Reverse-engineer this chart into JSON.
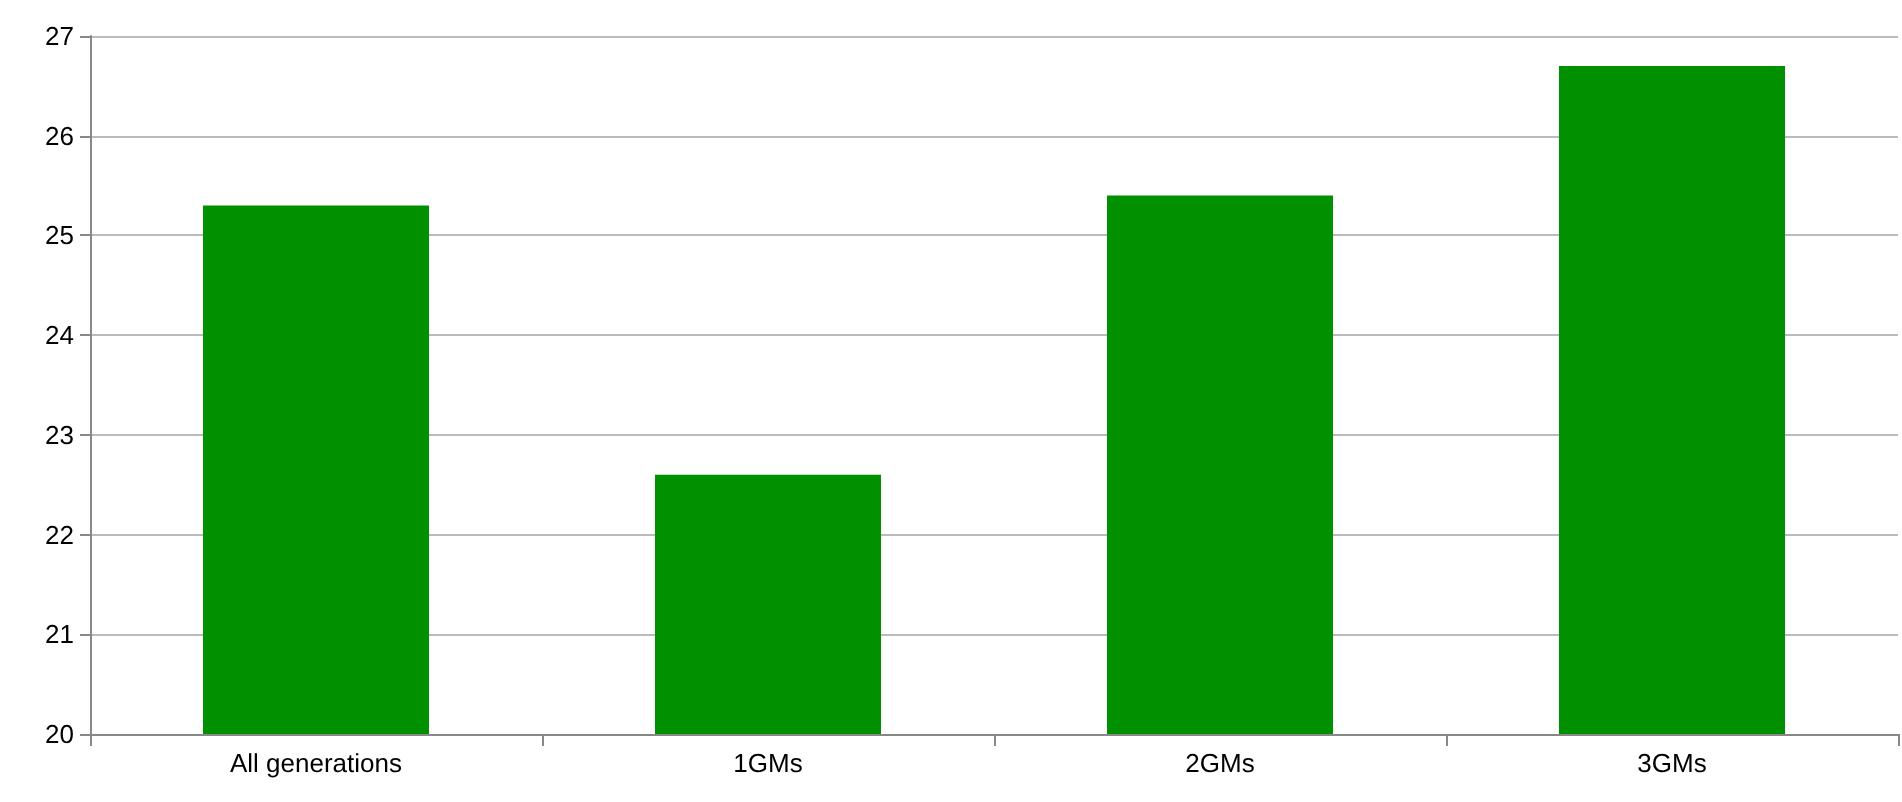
{
  "chart_data": {
    "type": "bar",
    "categories": [
      "All generations",
      "1GMs",
      "2GMs",
      "3GMs"
    ],
    "values": [
      25.3,
      22.6,
      25.4,
      26.7
    ],
    "color": "#009000",
    "ylim": [
      20,
      27
    ],
    "yticks": [
      20,
      21,
      22,
      23,
      24,
      25,
      26,
      27
    ],
    "grid": "y"
  }
}
